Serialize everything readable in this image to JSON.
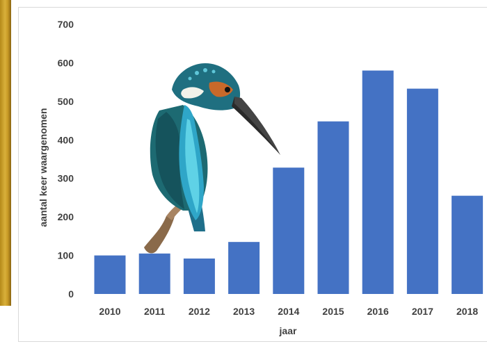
{
  "chart_data": {
    "type": "bar",
    "categories": [
      "2010",
      "2011",
      "2012",
      "2013",
      "2014",
      "2015",
      "2016",
      "2017",
      "2018"
    ],
    "values": [
      100,
      105,
      92,
      135,
      328,
      448,
      580,
      533,
      255
    ],
    "title": "",
    "xlabel": "jaar",
    "ylabel": "aantal keer waargenomen",
    "ylim": [
      0,
      700
    ],
    "yticks": [
      0,
      100,
      200,
      300,
      400,
      500,
      600,
      700
    ],
    "grid": false,
    "bar_color": "#4472c4",
    "illustration": "kingfisher-bird"
  }
}
